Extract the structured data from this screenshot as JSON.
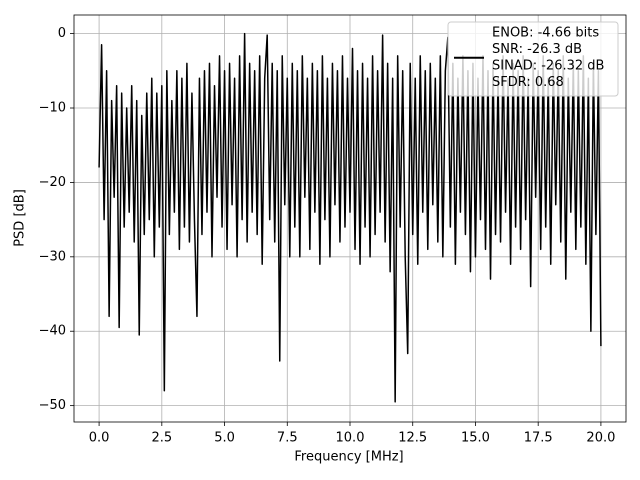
{
  "chart_data": {
    "type": "line",
    "xlabel": "Frequency [MHz]",
    "ylabel": "PSD [dB]",
    "xlim": [
      -1,
      21
    ],
    "ylim": [
      -52.2,
      2.5
    ],
    "xticks": [
      {
        "value": 0,
        "label": "0.0"
      },
      2.5,
      {
        "value": 5,
        "label": "5.0"
      },
      7.5,
      {
        "value": 10,
        "label": "10.0"
      },
      12.5,
      {
        "value": 15,
        "label": "15.0"
      },
      17.5,
      {
        "value": 20,
        "label": "20.0"
      }
    ],
    "yticks": [
      0,
      {
        "value": -10,
        "label": "−10"
      },
      {
        "value": -20,
        "label": "−20"
      },
      {
        "value": -30,
        "label": "−30"
      },
      {
        "value": -40,
        "label": "−40"
      },
      {
        "value": -50,
        "label": "−50"
      }
    ],
    "grid": true,
    "legend_position": "upper right",
    "legend_lines": [
      "ENOB: -4.66 bits",
      "SNR: -26.3 dB",
      "SINAD: -26.32 dB",
      "SFDR: 0.68"
    ],
    "series": [
      {
        "color": "#000000",
        "x": [
          0,
          0.1,
          0.2,
          0.3,
          0.4,
          0.5,
          0.6,
          0.7,
          0.8,
          0.9,
          1,
          1.1,
          1.2,
          1.3,
          1.4,
          1.5,
          1.6,
          1.7,
          1.8,
          1.9,
          2,
          2.1,
          2.2,
          2.3,
          2.4,
          2.5,
          2.6,
          2.7,
          2.8,
          2.9,
          3,
          3.1,
          3.2,
          3.3,
          3.4,
          3.5,
          3.6,
          3.7,
          3.8,
          3.9,
          4,
          4.1,
          4.2,
          4.3,
          4.4,
          4.5,
          4.6,
          4.7,
          4.8,
          4.9,
          5,
          5.1,
          5.2,
          5.3,
          5.4,
          5.5,
          5.6,
          5.7,
          5.8,
          5.9,
          6,
          6.1,
          6.2,
          6.3,
          6.4,
          6.5,
          6.6,
          6.7,
          6.8,
          6.9,
          7,
          7.1,
          7.2,
          7.3,
          7.4,
          7.5,
          7.6,
          7.7,
          7.8,
          7.9,
          8,
          8.1,
          8.2,
          8.3,
          8.4,
          8.5,
          8.6,
          8.7,
          8.8,
          8.9,
          9,
          9.1,
          9.2,
          9.3,
          9.4,
          9.5,
          9.6,
          9.7,
          9.8,
          9.9,
          10,
          10.1,
          10.2,
          10.3,
          10.4,
          10.5,
          10.6,
          10.7,
          10.8,
          10.9,
          11,
          11.1,
          11.2,
          11.3,
          11.4,
          11.5,
          11.6,
          11.7,
          11.8,
          11.9,
          12,
          12.1,
          12.2,
          12.3,
          12.4,
          12.5,
          12.6,
          12.7,
          12.8,
          12.9,
          13,
          13.1,
          13.2,
          13.3,
          13.4,
          13.5,
          13.6,
          13.7,
          13.8,
          13.9,
          14,
          14.1,
          14.2,
          14.3,
          14.4,
          14.5,
          14.6,
          14.7,
          14.8,
          14.9,
          15,
          15.1,
          15.2,
          15.3,
          15.4,
          15.5,
          15.6,
          15.7,
          15.8,
          15.9,
          16,
          16.1,
          16.2,
          16.3,
          16.4,
          16.5,
          16.6,
          16.7,
          16.8,
          16.9,
          17,
          17.1,
          17.2,
          17.3,
          17.4,
          17.5,
          17.6,
          17.7,
          17.8,
          17.9,
          18,
          18.1,
          18.2,
          18.3,
          18.4,
          18.5,
          18.6,
          18.7,
          18.8,
          18.9,
          19,
          19.1,
          19.2,
          19.3,
          19.4,
          19.5,
          19.6,
          19.7,
          19.8,
          19.9,
          20
        ],
        "values": [
          -18,
          -1.5,
          -25,
          -5,
          -38,
          -9,
          -22,
          -7,
          -39.5,
          -8,
          -26,
          -10,
          -24,
          -7,
          -28,
          -9,
          -40.5,
          -11,
          -27,
          -8,
          -25,
          -6,
          -30,
          -8,
          -26,
          -7,
          -48,
          -5,
          -27,
          -9,
          -24,
          -5,
          -29,
          -6,
          -26,
          -4,
          -28,
          -8,
          -25,
          -38,
          -6,
          -27,
          -5,
          -24,
          -4,
          -30,
          -7,
          -22,
          -3,
          -26,
          -5,
          -29,
          -4,
          -23,
          -6,
          -30,
          -3,
          -25,
          0,
          -28,
          -4,
          -24,
          -5,
          -27,
          -3,
          -31,
          -6,
          -0.2,
          -25,
          -4,
          -28,
          -5,
          -44,
          -3,
          -23,
          -6,
          -30,
          -4,
          -26,
          -5,
          -30,
          -3,
          -22,
          -6,
          -29,
          -4,
          -24,
          -5,
          -31,
          -3,
          -25,
          -6,
          -30,
          -4,
          -23,
          -5,
          -28,
          -3,
          -26,
          -6,
          -24,
          -2,
          -29,
          -5,
          -31,
          -4,
          -26,
          -6,
          -30,
          -3,
          -27,
          -5,
          -24,
          -0.2,
          -28,
          -4,
          -32,
          -6,
          -49.5,
          -3,
          -26,
          -5,
          -30,
          -43,
          -4,
          -27,
          -6,
          -31,
          -3,
          -24,
          -5,
          -29,
          -4,
          -23,
          -6,
          -28,
          -3,
          -30,
          -5,
          -0.5,
          -26,
          -4,
          -31,
          -6,
          -24,
          -3,
          -27,
          -5,
          -32,
          -4,
          -30,
          -6,
          -25,
          -3,
          -29,
          -5,
          -33,
          -4,
          -27,
          -6,
          -28,
          -3,
          -24,
          -6,
          -31,
          -4,
          -26,
          -5,
          -29,
          -3,
          -25,
          -6,
          -34,
          -4,
          -22,
          -5,
          -29,
          -3,
          -26,
          -6,
          -31,
          -4,
          -23,
          -5,
          -28,
          -3,
          -33,
          -6,
          -24,
          -4,
          -29,
          -5,
          -26,
          -3,
          -31,
          -6,
          -40,
          -4,
          -27,
          -5,
          -42
        ]
      }
    ]
  }
}
